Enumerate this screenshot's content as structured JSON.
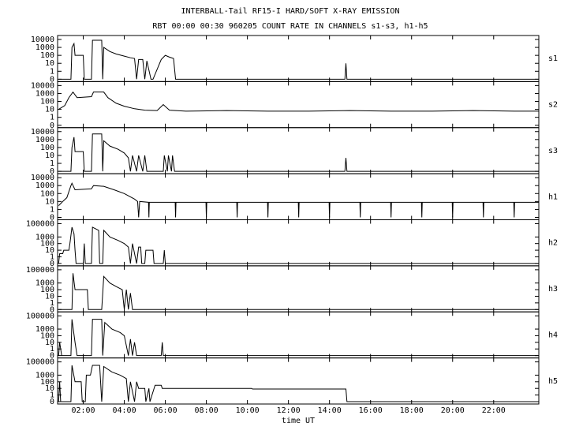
{
  "title": "INTERBALL-Tail RF15-I HARD/SOFT X-RAY EMISSION",
  "subtitle": "RBT 00:00 00:30 960205  COUNT RATE IN CHANNELS s1-s3, h1-h5",
  "chart_data": [
    {
      "type": "line",
      "label": "s1",
      "yscale": "symlog",
      "color": "#000000",
      "xlim": [
        0.75,
        24.2
      ],
      "ylim": [
        0,
        10000
      ],
      "yticks": [
        0,
        1,
        10,
        100,
        1000,
        10000
      ],
      "x": [
        0.8,
        1.4,
        1.45,
        1.55,
        1.6,
        2.0,
        2.05,
        2.4,
        2.45,
        2.9,
        2.95,
        3.0,
        3.3,
        3.6,
        4.0,
        4.3,
        4.5,
        4.6,
        4.7,
        4.9,
        5.0,
        5.1,
        5.3,
        5.4,
        5.8,
        6.0,
        6.2,
        6.4,
        6.5,
        14.75,
        14.8,
        14.85,
        24.2
      ],
      "values": [
        0,
        0,
        1000,
        3000,
        100,
        100,
        0,
        0,
        8000,
        8000,
        0,
        1000,
        300,
        150,
        80,
        50,
        40,
        0,
        30,
        30,
        0,
        20,
        0,
        0,
        30,
        100,
        60,
        40,
        0,
        0,
        10,
        0,
        0
      ]
    },
    {
      "type": "line",
      "label": "s2",
      "yscale": "symlog",
      "color": "#000000",
      "xlim": [
        0.75,
        24.2
      ],
      "ylim": [
        0,
        10000
      ],
      "yticks": [
        0,
        1,
        10,
        100,
        1000,
        10000
      ],
      "x": [
        0.8,
        1.1,
        1.3,
        1.5,
        1.7,
        2.4,
        2.5,
        3.0,
        3.2,
        3.6,
        4.0,
        4.5,
        5.0,
        5.6,
        5.9,
        6.2,
        7,
        9,
        11,
        13,
        15,
        17,
        19,
        21,
        23,
        24.2
      ],
      "values": [
        10,
        30,
        300,
        1500,
        300,
        400,
        1500,
        1500,
        300,
        60,
        25,
        12,
        8,
        7,
        40,
        8,
        6,
        7,
        6,
        6,
        7,
        6,
        6,
        7,
        6,
        6
      ]
    },
    {
      "type": "line",
      "label": "s3",
      "yscale": "symlog",
      "color": "#000000",
      "xlim": [
        0.75,
        24.2
      ],
      "ylim": [
        0,
        10000
      ],
      "yticks": [
        0,
        1,
        10,
        100,
        1000,
        10000
      ],
      "x": [
        0.8,
        1.4,
        1.45,
        1.55,
        1.6,
        2.0,
        2.05,
        2.4,
        2.45,
        2.9,
        2.95,
        3.0,
        3.3,
        3.7,
        4.0,
        4.2,
        4.3,
        4.4,
        4.6,
        4.7,
        4.9,
        5.0,
        5.1,
        5.9,
        5.95,
        6.1,
        6.15,
        6.3,
        6.35,
        6.45,
        14.75,
        14.8,
        14.85,
        24.2
      ],
      "values": [
        0,
        0,
        100,
        2000,
        30,
        30,
        0,
        0,
        5000,
        5000,
        0,
        700,
        150,
        60,
        20,
        5,
        0,
        10,
        0,
        10,
        0,
        10,
        0,
        0,
        10,
        0,
        10,
        0,
        10,
        0,
        0,
        5,
        0,
        0
      ]
    },
    {
      "type": "line",
      "label": "h1",
      "yscale": "symlog",
      "color": "#000000",
      "xlim": [
        0.75,
        24.2
      ],
      "ylim": [
        0,
        10000
      ],
      "yticks": [
        0,
        1,
        10,
        100,
        1000,
        10000
      ],
      "x": [
        0.8,
        1.0,
        1.2,
        1.4,
        1.45,
        1.6,
        2.4,
        2.5,
        3.0,
        3.5,
        4.0,
        4.5,
        4.65,
        4.7,
        4.75,
        5.18,
        5.2,
        5.22,
        6.48,
        6.5,
        6.52,
        7.98,
        8.0,
        8.02,
        9.48,
        9.5,
        9.52,
        10.98,
        11.0,
        11.02,
        12.48,
        12.5,
        12.52,
        13.98,
        14.0,
        14.02,
        15.48,
        15.5,
        15.52,
        16.98,
        17.0,
        17.02,
        18.48,
        18.5,
        18.52,
        19.98,
        20.0,
        20.02,
        21.48,
        21.5,
        21.52,
        22.98,
        23.0,
        23.02,
        24.2
      ],
      "values": [
        3,
        10,
        30,
        1000,
        2000,
        300,
        400,
        1000,
        800,
        300,
        100,
        20,
        10,
        0,
        10,
        8,
        0,
        8,
        8,
        0,
        8,
        8,
        0,
        8,
        8,
        0,
        8,
        8,
        0,
        8,
        8,
        0,
        8,
        8,
        0,
        8,
        8,
        0,
        8,
        8,
        0,
        8,
        8,
        0,
        8,
        8,
        0,
        8,
        8,
        0,
        8,
        8,
        0,
        8,
        8
      ]
    },
    {
      "type": "line",
      "label": "h2",
      "yscale": "symlog",
      "color": "#000000",
      "xlim": [
        0.75,
        24.2
      ],
      "ylim": [
        0,
        100000
      ],
      "yticks": [
        0,
        1,
        10,
        100,
        1000,
        100000
      ],
      "x": [
        0.8,
        0.85,
        1.0,
        1.05,
        1.3,
        1.35,
        1.45,
        1.55,
        1.6,
        1.65,
        2.0,
        2.05,
        2.1,
        2.4,
        2.45,
        2.75,
        2.8,
        2.95,
        3.0,
        3.3,
        3.7,
        4.0,
        4.2,
        4.3,
        4.4,
        4.6,
        4.7,
        4.8,
        4.85,
        5.0,
        5.05,
        5.4,
        5.45,
        5.9,
        5.95,
        6.0,
        24.2
      ],
      "values": [
        0,
        3,
        3,
        10,
        10,
        100,
        30000,
        3000,
        10,
        0,
        0,
        100,
        0,
        0,
        30000,
        10000,
        0,
        0,
        10000,
        1000,
        300,
        100,
        30,
        0,
        100,
        0,
        30,
        30,
        0,
        0,
        10,
        10,
        0,
        0,
        10,
        0,
        0
      ]
    },
    {
      "type": "line",
      "label": "h3",
      "yscale": "symlog",
      "color": "#000000",
      "xlim": [
        0.75,
        24.2
      ],
      "ylim": [
        0,
        100000
      ],
      "yticks": [
        0,
        1,
        10,
        100,
        1000,
        100000
      ],
      "x": [
        0.8,
        1.45,
        1.5,
        1.6,
        2.2,
        2.25,
        2.9,
        3.0,
        3.3,
        3.6,
        3.9,
        4.0,
        4.1,
        4.2,
        4.3,
        4.4,
        24.2
      ],
      "values": [
        0,
        0,
        30000,
        100,
        100,
        0,
        0,
        10000,
        1000,
        300,
        100,
        0,
        100,
        0,
        30,
        0,
        0
      ]
    },
    {
      "type": "line",
      "label": "h4",
      "yscale": "symlog",
      "color": "#000000",
      "xlim": [
        0.75,
        24.2
      ],
      "ylim": [
        0,
        100000
      ],
      "yticks": [
        0,
        1,
        10,
        100,
        1000,
        100000
      ],
      "x": [
        0.8,
        0.85,
        0.95,
        1.4,
        1.45,
        1.6,
        1.7,
        2.4,
        2.45,
        2.9,
        2.95,
        3.05,
        3.4,
        3.8,
        4.0,
        4.2,
        4.3,
        4.4,
        4.5,
        4.6,
        5.8,
        5.85,
        5.9,
        24.2
      ],
      "values": [
        0,
        10,
        0,
        0,
        30000,
        10,
        0,
        0,
        30000,
        30000,
        0,
        10000,
        1000,
        300,
        100,
        0,
        30,
        0,
        10,
        0,
        0,
        10,
        0,
        0
      ]
    },
    {
      "type": "line",
      "label": "h5",
      "yscale": "symlog",
      "color": "#000000",
      "xlim": [
        0.75,
        24.2
      ],
      "ylim": [
        0,
        100000
      ],
      "yticks": [
        0,
        1,
        10,
        100,
        1000,
        100000
      ],
      "xlabel": "time UT",
      "xticks": [
        {
          "value": 2,
          "label": "02:00"
        },
        {
          "value": 4,
          "label": "04:00"
        },
        {
          "value": 6,
          "label": "06:00"
        },
        {
          "value": 8,
          "label": "08:00"
        },
        {
          "value": 10,
          "label": "10:00"
        },
        {
          "value": 12,
          "label": "12:00"
        },
        {
          "value": 14,
          "label": "14:00"
        },
        {
          "value": 16,
          "label": "16:00"
        },
        {
          "value": 18,
          "label": "18:00"
        },
        {
          "value": 20,
          "label": "20:00"
        },
        {
          "value": 22,
          "label": "22:00"
        }
      ],
      "x": [
        0.8,
        0.85,
        0.9,
        1.4,
        1.45,
        1.6,
        1.9,
        1.95,
        2.1,
        2.15,
        2.35,
        2.45,
        2.8,
        2.9,
        3.0,
        3.4,
        3.8,
        4.1,
        4.2,
        4.3,
        4.5,
        4.6,
        4.7,
        5.0,
        5.05,
        5.2,
        5.25,
        5.5,
        5.8,
        5.85,
        10.2,
        10.25,
        14.8,
        14.85,
        24.2
      ],
      "values": [
        0,
        100,
        0,
        0,
        30000,
        100,
        100,
        0,
        0,
        1000,
        1000,
        30000,
        30000,
        0,
        20000,
        3000,
        1000,
        300,
        0,
        100,
        0,
        100,
        10,
        10,
        0,
        10,
        0,
        30,
        30,
        10,
        10,
        8,
        8,
        0,
        0
      ]
    }
  ]
}
